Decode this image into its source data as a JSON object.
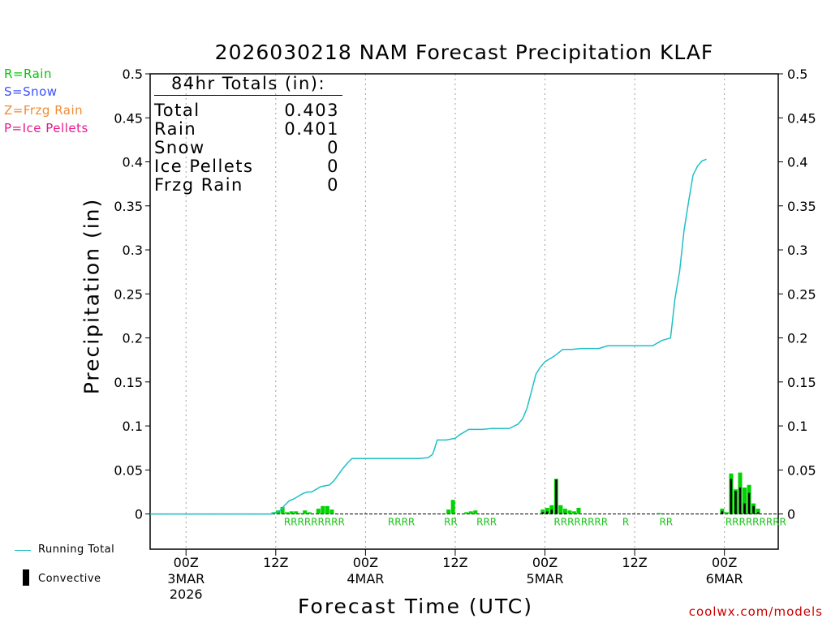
{
  "title": "2026030218 NAM Forecast Precipitation KLAF",
  "legend_top": [
    {
      "text": "R=Rain",
      "color": "#00c800"
    },
    {
      "text": "S=Snow",
      "color": "#3c50ff"
    },
    {
      "text": "Z=Frzg Rain",
      "color": "#f08c32"
    },
    {
      "text": "P=Ice Pellets",
      "color": "#e6198c"
    }
  ],
  "totals": {
    "title": "84hr Totals (in):",
    "rows": [
      {
        "label": "Total",
        "value": "0.403"
      },
      {
        "label": "Rain",
        "value": "0.401"
      },
      {
        "label": "Snow",
        "value": "0"
      },
      {
        "label": "Ice Pellets",
        "value": "0"
      },
      {
        "label": "Frzg Rain",
        "value": "0"
      }
    ]
  },
  "legend_bottom": {
    "running_total": "Running Total",
    "convective": "Convective"
  },
  "credit": "coolwx.com/models",
  "colors": {
    "rain": "#00d400",
    "convective": "#000000",
    "running_total": "#1fbfc6",
    "grid": "#a0a0a0"
  },
  "chart_data": {
    "type": "bar",
    "title": "2026030218 NAM Forecast Precipitation KLAF",
    "xlabel": "Forecast Time (UTC)",
    "ylabel": "Precipitation (in)",
    "ylim": [
      -0.04,
      0.5
    ],
    "xlim_hours": [
      -4,
      66
    ],
    "y_ticks": [
      "0",
      "0.05",
      "0.1",
      "0.15",
      "0.2",
      "0.25",
      "0.3",
      "0.35",
      "0.4",
      "0.45",
      "0.5"
    ],
    "y_tick_values": [
      0,
      0.05,
      0.1,
      0.15,
      0.2,
      0.25,
      0.3,
      0.35,
      0.4,
      0.45,
      0.5
    ],
    "x_ticks": [
      {
        "hour": 0,
        "label": "00Z",
        "date": "3MAR",
        "year": "2026"
      },
      {
        "hour": 10,
        "label": "12Z",
        "date": "",
        "year": ""
      },
      {
        "hour": 20,
        "label": "00Z",
        "date": "4MAR",
        "year": ""
      },
      {
        "hour": 30,
        "label": "12Z",
        "date": "",
        "year": ""
      },
      {
        "hour": 40,
        "label": "00Z",
        "date": "5MAR",
        "year": ""
      },
      {
        "hour": 50,
        "label": "12Z",
        "date": "",
        "year": ""
      },
      {
        "hour": 60,
        "label": "00Z",
        "date": "6MAR",
        "year": ""
      }
    ],
    "bars": [
      {
        "h": 9.75,
        "total": 0.002,
        "conv": 0
      },
      {
        "h": 10.25,
        "total": 0.004,
        "conv": 0
      },
      {
        "h": 10.75,
        "total": 0.008,
        "conv": 0
      },
      {
        "h": 11.25,
        "total": 0.002,
        "conv": 0
      },
      {
        "h": 11.75,
        "total": 0.003,
        "conv": 0
      },
      {
        "h": 12.25,
        "total": 0.003,
        "conv": 0
      },
      {
        "h": 12.75,
        "total": 0.001,
        "conv": 0
      },
      {
        "h": 13.25,
        "total": 0.004,
        "conv": 0
      },
      {
        "h": 13.75,
        "total": 0.002,
        "conv": 0
      },
      {
        "h": 14.75,
        "total": 0.006,
        "conv": 0
      },
      {
        "h": 15.25,
        "total": 0.009,
        "conv": 0
      },
      {
        "h": 15.75,
        "total": 0.009,
        "conv": 0
      },
      {
        "h": 16.25,
        "total": 0.005,
        "conv": 0
      },
      {
        "h": 29.25,
        "total": 0.005,
        "conv": 0
      },
      {
        "h": 29.75,
        "total": 0.016,
        "conv": 0
      },
      {
        "h": 31.25,
        "total": 0.002,
        "conv": 0
      },
      {
        "h": 31.75,
        "total": 0.003,
        "conv": 0
      },
      {
        "h": 32.25,
        "total": 0.004,
        "conv": 0
      },
      {
        "h": 39.75,
        "total": 0.005,
        "conv": 0.002
      },
      {
        "h": 40.25,
        "total": 0.007,
        "conv": 0.003
      },
      {
        "h": 40.75,
        "total": 0.01,
        "conv": 0.005
      },
      {
        "h": 41.25,
        "total": 0.04,
        "conv": 0.039
      },
      {
        "h": 41.75,
        "total": 0.01,
        "conv": 0.001
      },
      {
        "h": 42.25,
        "total": 0.006,
        "conv": 0.001
      },
      {
        "h": 42.75,
        "total": 0.004,
        "conv": 0
      },
      {
        "h": 43.25,
        "total": 0.003,
        "conv": 0
      },
      {
        "h": 43.75,
        "total": 0.007,
        "conv": 0
      },
      {
        "h": 52.75,
        "total": 0.001,
        "conv": 0
      },
      {
        "h": 59.75,
        "total": 0.006,
        "conv": 0.003
      },
      {
        "h": 60.25,
        "total": 0.002,
        "conv": 0
      },
      {
        "h": 60.75,
        "total": 0.046,
        "conv": 0.04
      },
      {
        "h": 61.25,
        "total": 0.028,
        "conv": 0.026
      },
      {
        "h": 61.75,
        "total": 0.047,
        "conv": 0.03
      },
      {
        "h": 62.25,
        "total": 0.03,
        "conv": 0.012
      },
      {
        "h": 62.75,
        "total": 0.033,
        "conv": 0.024
      },
      {
        "h": 63.25,
        "total": 0.012,
        "conv": 0.009
      },
      {
        "h": 63.75,
        "total": 0.006,
        "conv": 0.002
      }
    ],
    "running_total": [
      [
        -4,
        0
      ],
      [
        9.5,
        0
      ],
      [
        10.5,
        0.004
      ],
      [
        11,
        0.01
      ],
      [
        11.5,
        0.015
      ],
      [
        12,
        0.017
      ],
      [
        13,
        0.023
      ],
      [
        13.5,
        0.025
      ],
      [
        14,
        0.025
      ],
      [
        15,
        0.031
      ],
      [
        15.5,
        0.032
      ],
      [
        16,
        0.033
      ],
      [
        16.5,
        0.038
      ],
      [
        17.5,
        0.052
      ],
      [
        18,
        0.058
      ],
      [
        18.5,
        0.063
      ],
      [
        20,
        0.063
      ],
      [
        25,
        0.063
      ],
      [
        26,
        0.063
      ],
      [
        27,
        0.064
      ],
      [
        27.5,
        0.068
      ],
      [
        28,
        0.084
      ],
      [
        29,
        0.084
      ],
      [
        30,
        0.086
      ],
      [
        30.5,
        0.09
      ],
      [
        31,
        0.093
      ],
      [
        31.5,
        0.096
      ],
      [
        33,
        0.096
      ],
      [
        34,
        0.097
      ],
      [
        36,
        0.097
      ],
      [
        37,
        0.102
      ],
      [
        37.5,
        0.108
      ],
      [
        38,
        0.12
      ],
      [
        39,
        0.159
      ],
      [
        39.5,
        0.167
      ],
      [
        40,
        0.173
      ],
      [
        41,
        0.179
      ],
      [
        42,
        0.187
      ],
      [
        43,
        0.187
      ],
      [
        44,
        0.188
      ],
      [
        46,
        0.188
      ],
      [
        47,
        0.191
      ],
      [
        48,
        0.191
      ],
      [
        52,
        0.191
      ],
      [
        53,
        0.197
      ],
      [
        54,
        0.2
      ],
      [
        54.5,
        0.245
      ],
      [
        55,
        0.275
      ],
      [
        55.5,
        0.322
      ],
      [
        56,
        0.354
      ],
      [
        56.5,
        0.385
      ],
      [
        57,
        0.395
      ],
      [
        57.5,
        0.401
      ],
      [
        58,
        0.403
      ]
    ],
    "precip_type_labels": [
      {
        "h": 14.3,
        "text": "RRRRRRRRR"
      },
      {
        "h": 24.0,
        "text": "RRRR"
      },
      {
        "h": 29.5,
        "text": "RR"
      },
      {
        "h": 33.5,
        "text": "RRR"
      },
      {
        "h": 44.0,
        "text": "RRRRRRRR"
      },
      {
        "h": 49.0,
        "text": "R"
      },
      {
        "h": 53.5,
        "text": "RR"
      },
      {
        "h": 63.5,
        "text": "RRRRRRRRR"
      }
    ]
  }
}
